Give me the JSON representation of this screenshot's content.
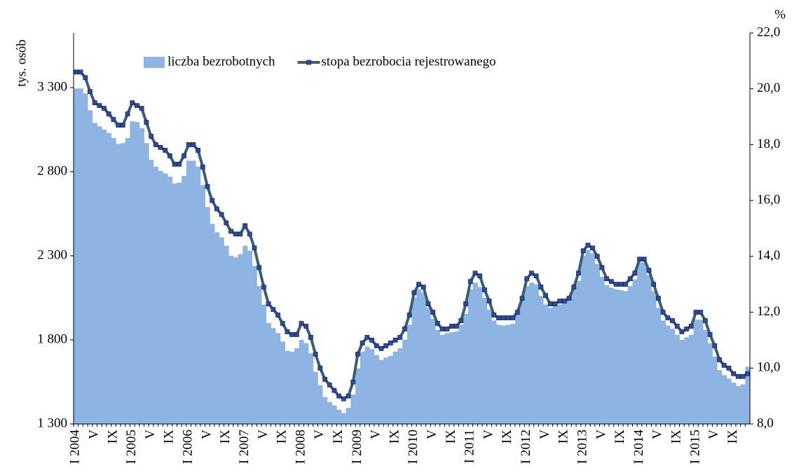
{
  "chart_data": {
    "type": "bar_line",
    "y_label": "tys. osób",
    "y2_label": "%",
    "categories": [
      "I 2004",
      null,
      null,
      null,
      "V",
      null,
      null,
      null,
      "IX",
      null,
      null,
      null,
      "I 2005",
      null,
      null,
      null,
      "V",
      null,
      null,
      null,
      "IX",
      null,
      null,
      null,
      "I 2006",
      null,
      null,
      null,
      "V",
      null,
      null,
      null,
      "IX",
      null,
      null,
      null,
      "I 2007",
      null,
      null,
      null,
      "V",
      null,
      null,
      null,
      "IX",
      null,
      null,
      null,
      "I 2008",
      null,
      null,
      null,
      "V",
      null,
      null,
      null,
      "IX",
      null,
      null,
      null,
      "I 2009",
      null,
      null,
      null,
      "V",
      null,
      null,
      null,
      "IX",
      null,
      null,
      null,
      "I 2010",
      null,
      null,
      null,
      "V",
      null,
      null,
      null,
      "IX",
      null,
      null,
      null,
      "I 2011",
      null,
      null,
      null,
      "V",
      null,
      null,
      null,
      "IX",
      null,
      null,
      null,
      "I 2012",
      null,
      null,
      null,
      "V",
      null,
      null,
      null,
      "IX",
      null,
      null,
      null,
      "I 2013",
      null,
      null,
      null,
      "V",
      null,
      null,
      null,
      "IX",
      null,
      null,
      null,
      "I 2014",
      null,
      null,
      null,
      "V",
      null,
      null,
      null,
      "IX",
      null,
      null,
      null,
      "I 2015",
      null,
      null,
      null,
      "V",
      null,
      null,
      null,
      "IX",
      null,
      null,
      null
    ],
    "series": [
      {
        "name": "liczba bezrobotnych",
        "type": "bar",
        "color": "#8db4e2",
        "axis": "y",
        "values": [
          3295,
          3295,
          3265,
          3165,
          3090,
          3070,
          3050,
          3030,
          3000,
          2965,
          2970,
          3000,
          3100,
          3095,
          3060,
          2970,
          2870,
          2830,
          2805,
          2790,
          2770,
          2730,
          2735,
          2775,
          2865,
          2865,
          2830,
          2720,
          2590,
          2490,
          2440,
          2410,
          2360,
          2300,
          2290,
          2310,
          2360,
          2330,
          2240,
          2120,
          2010,
          1900,
          1870,
          1840,
          1790,
          1735,
          1730,
          1750,
          1800,
          1780,
          1720,
          1610,
          1530,
          1460,
          1430,
          1410,
          1385,
          1365,
          1395,
          1475,
          1630,
          1730,
          1760,
          1745,
          1710,
          1680,
          1695,
          1705,
          1730,
          1750,
          1800,
          1890,
          2050,
          2100,
          2080,
          1990,
          1925,
          1860,
          1830,
          1840,
          1845,
          1850,
          1890,
          1955,
          2100,
          2140,
          2115,
          2050,
          1980,
          1915,
          1890,
          1885,
          1890,
          1895,
          1950,
          2040,
          2120,
          2140,
          2130,
          2060,
          2010,
          1990,
          2000,
          2010,
          2020,
          2050,
          2100,
          2150,
          2300,
          2335,
          2315,
          2250,
          2175,
          2125,
          2110,
          2100,
          2095,
          2090,
          2120,
          2160,
          2260,
          2260,
          2185,
          2090,
          1990,
          1915,
          1885,
          1865,
          1830,
          1800,
          1815,
          1830,
          1920,
          1920,
          1860,
          1780,
          1700,
          1620,
          1590,
          1570,
          1545,
          1525,
          1535,
          1640
        ]
      },
      {
        "name": "stopa bezrobocia rejestrowanego",
        "type": "line",
        "color": "#3b5f6e",
        "marker_color": "#2e4a9e",
        "axis": "y2",
        "values": [
          20.6,
          20.6,
          20.4,
          19.9,
          19.5,
          19.4,
          19.3,
          19.1,
          18.9,
          18.7,
          18.7,
          19.1,
          19.5,
          19.4,
          19.3,
          18.8,
          18.3,
          18.0,
          17.9,
          17.8,
          17.6,
          17.3,
          17.3,
          17.6,
          18.0,
          18.0,
          17.8,
          17.2,
          16.5,
          16.0,
          15.7,
          15.5,
          15.2,
          14.9,
          14.8,
          14.8,
          15.1,
          14.8,
          14.3,
          13.6,
          12.9,
          12.3,
          12.1,
          11.9,
          11.6,
          11.3,
          11.2,
          11.2,
          11.6,
          11.5,
          11.1,
          10.5,
          10.0,
          9.6,
          9.4,
          9.2,
          9.0,
          8.9,
          9.0,
          9.5,
          10.5,
          10.9,
          11.1,
          11.0,
          10.8,
          10.7,
          10.8,
          10.9,
          11.0,
          11.1,
          11.4,
          11.9,
          12.7,
          13.0,
          12.9,
          12.3,
          12.0,
          11.6,
          11.4,
          11.4,
          11.5,
          11.5,
          11.7,
          12.3,
          13.1,
          13.4,
          13.3,
          12.8,
          12.4,
          11.9,
          11.8,
          11.8,
          11.8,
          11.8,
          12.0,
          12.5,
          13.2,
          13.4,
          13.3,
          12.9,
          12.6,
          12.3,
          12.3,
          12.4,
          12.4,
          12.5,
          12.9,
          13.4,
          14.2,
          14.4,
          14.3,
          14.0,
          13.6,
          13.2,
          13.1,
          13.0,
          13.0,
          13.0,
          13.2,
          13.4,
          13.9,
          13.9,
          13.5,
          13.0,
          12.5,
          12.0,
          11.8,
          11.7,
          11.5,
          11.3,
          11.4,
          11.5,
          12.0,
          12.0,
          11.7,
          11.2,
          10.8,
          10.3,
          10.1,
          10.0,
          9.8,
          9.7,
          9.7,
          9.8
        ]
      }
    ],
    "ylim": [
      1300,
      3625
    ],
    "yticks": [
      {
        "value": 1300,
        "label": "1 300"
      },
      {
        "value": 1800,
        "label": "1 800"
      },
      {
        "value": 2300,
        "label": "2 300"
      },
      {
        "value": 2800,
        "label": "2 800"
      },
      {
        "value": 3300,
        "label": "3 300"
      }
    ],
    "y2lim": [
      8,
      22
    ],
    "y2ticks": [
      {
        "value": 8,
        "label": "8,0"
      },
      {
        "value": 10,
        "label": "10,0"
      },
      {
        "value": 12,
        "label": "12,0"
      },
      {
        "value": 14,
        "label": "14,0"
      },
      {
        "value": 16,
        "label": "16,0"
      },
      {
        "value": 18,
        "label": "18,0"
      },
      {
        "value": 20,
        "label": "20,0"
      },
      {
        "value": 22,
        "label": "22,0"
      }
    ],
    "legend": "top-left",
    "grid": false
  }
}
